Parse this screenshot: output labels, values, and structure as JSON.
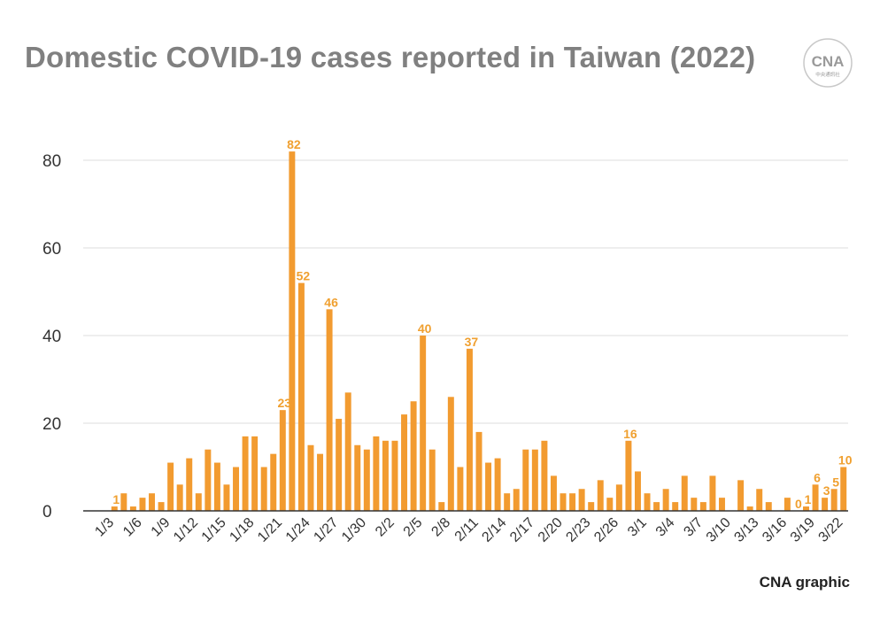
{
  "title": "Domestic COVID-19 cases reported in Taiwan (2022)",
  "credit": "CNA graphic",
  "logo": {
    "text": "CNA",
    "subtext": "中央通訊社"
  },
  "colors": {
    "bar": "#f29b30",
    "label": "#f0a030",
    "grid": "#dddddd",
    "axis": "#333333",
    "title": "#808080"
  },
  "chart_data": {
    "type": "bar",
    "title": "Domestic COVID-19 cases reported in Taiwan (2022)",
    "xlabel": "",
    "ylabel": "",
    "ylim": [
      0,
      80
    ],
    "yticks": [
      0,
      20,
      40,
      60,
      80
    ],
    "grid": true,
    "legend": "none",
    "categories": [
      "1/3",
      "1/4",
      "1/5",
      "1/6",
      "1/7",
      "1/8",
      "1/9",
      "1/10",
      "1/11",
      "1/12",
      "1/13",
      "1/14",
      "1/15",
      "1/16",
      "1/17",
      "1/18",
      "1/19",
      "1/20",
      "1/21",
      "1/22",
      "1/23",
      "1/24",
      "1/25",
      "1/26",
      "1/27",
      "1/28",
      "1/29",
      "1/30",
      "1/31",
      "2/1",
      "2/2",
      "2/3",
      "2/4",
      "2/5",
      "2/6",
      "2/7",
      "2/8",
      "2/9",
      "2/10",
      "2/11",
      "2/12",
      "2/13",
      "2/14",
      "2/15",
      "2/16",
      "2/17",
      "2/18",
      "2/19",
      "2/20",
      "2/21",
      "2/22",
      "2/23",
      "2/24",
      "2/25",
      "2/26",
      "2/27",
      "2/28",
      "3/1",
      "3/2",
      "3/3",
      "3/4",
      "3/5",
      "3/6",
      "3/7",
      "3/8",
      "3/9",
      "3/10",
      "3/11",
      "3/12",
      "3/13",
      "3/14",
      "3/15",
      "3/16",
      "3/17",
      "3/18",
      "3/19",
      "3/20",
      "3/21",
      "3/22"
    ],
    "values": [
      1,
      4,
      1,
      3,
      4,
      2,
      11,
      6,
      12,
      4,
      14,
      11,
      6,
      10,
      17,
      17,
      10,
      13,
      23,
      82,
      52,
      15,
      13,
      46,
      21,
      27,
      15,
      14,
      17,
      16,
      16,
      22,
      25,
      40,
      14,
      2,
      26,
      10,
      37,
      18,
      11,
      12,
      4,
      5,
      14,
      14,
      16,
      8,
      4,
      4,
      5,
      2,
      7,
      3,
      6,
      16,
      9,
      4,
      2,
      5,
      2,
      8,
      3,
      2,
      8,
      3,
      0,
      7,
      1,
      5,
      2,
      0,
      3,
      0,
      1,
      6,
      3,
      5,
      10
    ],
    "tick_labels": [
      "1/3",
      "1/6",
      "1/9",
      "1/12",
      "1/15",
      "1/18",
      "1/21",
      "1/24",
      "1/27",
      "1/30",
      "2/2",
      "2/5",
      "2/8",
      "2/11",
      "2/14",
      "2/17",
      "2/20",
      "2/23",
      "2/26",
      "3/1",
      "3/4",
      "3/7",
      "3/10",
      "3/13",
      "3/16",
      "3/19",
      "3/22"
    ],
    "data_labels": [
      {
        "category": "1/3",
        "value": "1"
      },
      {
        "category": "1/21",
        "value": "23"
      },
      {
        "category": "1/22",
        "value": "82"
      },
      {
        "category": "1/23",
        "value": "52"
      },
      {
        "category": "1/26",
        "value": "46"
      },
      {
        "category": "2/5",
        "value": "40"
      },
      {
        "category": "2/10",
        "value": "37"
      },
      {
        "category": "2/27",
        "value": "16"
      },
      {
        "category": "3/17",
        "value": "0"
      },
      {
        "category": "3/18",
        "value": "1"
      },
      {
        "category": "3/19",
        "value": "6"
      },
      {
        "category": "3/20",
        "value": "3"
      },
      {
        "category": "3/21",
        "value": "5"
      },
      {
        "category": "3/22",
        "value": "10"
      }
    ]
  }
}
